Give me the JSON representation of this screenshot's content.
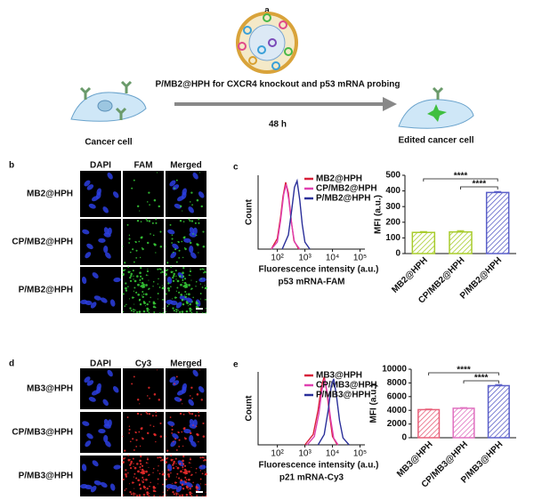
{
  "panel_a": {
    "label": "a",
    "caption": "P/MB2@HPH for CXCR4 knockout and p53 mRNA probing",
    "time": "48 h",
    "left_cell": "Cancer cell",
    "right_cell": "Edited cancer cell"
  },
  "panel_b": {
    "label": "b",
    "columns": [
      "DAPI",
      "FAM",
      "Merged"
    ],
    "rows": [
      "MB2@HPH",
      "CP/MB2@HPH",
      "P/MB2@HPH"
    ]
  },
  "panel_c": {
    "label": "c"
  },
  "panel_d": {
    "label": "d",
    "columns": [
      "DAPI",
      "Cy3",
      "Merged"
    ],
    "rows": [
      "MB3@HPH",
      "CP/MB3@HPH",
      "P/MB3@HPH"
    ]
  },
  "panel_e": {
    "label": "e"
  },
  "chart_data": [
    {
      "type": "line",
      "xlabel": "Fluorescence intensity (a.u.)",
      "caption": "p53 mRNA-FAM",
      "ylabel": "Count",
      "xscale": "log",
      "xlim": [
        20,
        150000
      ],
      "xticks": [
        {
          "value": 100,
          "label": "10²"
        },
        {
          "value": 1000,
          "label": "10³"
        },
        {
          "value": 10000,
          "label": "10⁴"
        },
        {
          "value": 100000,
          "label": "10⁵"
        }
      ],
      "ylim": [
        0,
        105
      ],
      "legend": "upper-right",
      "series": [
        {
          "name": "MB2@HPH",
          "color": "#d8203a",
          "x": [
            60,
            100,
            130,
            160,
            200,
            250,
            320,
            400,
            600
          ],
          "values": [
            0,
            15,
            45,
            75,
            95,
            80,
            40,
            12,
            0
          ]
        },
        {
          "name": "CP/MB2@HPH",
          "color": "#e040b0",
          "x": [
            60,
            100,
            130,
            170,
            210,
            260,
            330,
            420,
            650
          ],
          "values": [
            0,
            10,
            40,
            78,
            92,
            70,
            35,
            10,
            0
          ]
        },
        {
          "name": "P/MB2@HPH",
          "color": "#2a2f9a",
          "x": [
            150,
            250,
            330,
            420,
            520,
            650,
            800,
            1000,
            1500
          ],
          "values": [
            0,
            20,
            55,
            88,
            97,
            70,
            35,
            10,
            0
          ]
        }
      ]
    },
    {
      "type": "bar",
      "ylabel": "MFI (a.u.)",
      "categories": [
        "MB2@HPH",
        "CP/MB2@HPH",
        "P/MB2@HPH"
      ],
      "values": [
        135,
        138,
        390
      ],
      "errors": [
        5,
        8,
        6
      ],
      "colors": [
        "#a8cc2c",
        "#a8cc2c",
        "#5a5fc8"
      ],
      "ylim": [
        0,
        500
      ],
      "yticks": [
        0,
        100,
        200,
        300,
        400,
        500
      ],
      "annotations": [
        "****",
        "****"
      ]
    },
    {
      "type": "line",
      "xlabel": "Fluorescence intensity (a.u.)",
      "caption": "p21 mRNA-Cy3",
      "ylabel": "Count",
      "xscale": "log",
      "xlim": [
        20,
        150000
      ],
      "xticks": [
        {
          "value": 100,
          "label": "10²"
        },
        {
          "value": 1000,
          "label": "10³"
        },
        {
          "value": 10000,
          "label": "10⁴"
        },
        {
          "value": 100000,
          "label": "10⁵"
        }
      ],
      "ylim": [
        0,
        105
      ],
      "legend": "upper-right",
      "series": [
        {
          "name": "MB3@HPH",
          "color": "#d8203a",
          "x": [
            1000,
            2000,
            3000,
            4000,
            5000,
            6300,
            8000,
            10000,
            15000
          ],
          "values": [
            0,
            15,
            50,
            85,
            98,
            75,
            40,
            12,
            0
          ]
        },
        {
          "name": "CP/MB3@HPH",
          "color": "#e040b0",
          "x": [
            1200,
            2200,
            3200,
            4200,
            5300,
            6600,
            8500,
            11000,
            16000
          ],
          "values": [
            0,
            12,
            45,
            80,
            94,
            72,
            38,
            10,
            0
          ]
        },
        {
          "name": "P/MB3@HPH",
          "color": "#2a2f9a",
          "x": [
            3000,
            5000,
            7000,
            9000,
            11000,
            14000,
            18000,
            24000,
            40000
          ],
          "values": [
            0,
            15,
            50,
            85,
            95,
            70,
            35,
            10,
            0
          ]
        }
      ]
    },
    {
      "type": "bar",
      "ylabel": "MFI (a.u.)",
      "categories": [
        "MB3@HPH",
        "CP/MB3@HPH",
        "P/MB3@HPH"
      ],
      "values": [
        4100,
        4300,
        7600
      ],
      "errors": [
        80,
        90,
        150
      ],
      "colors": [
        "#e8607a",
        "#e070c0",
        "#5a5fc8"
      ],
      "ylim": [
        0,
        10000
      ],
      "yticks": [
        0,
        2000,
        4000,
        6000,
        8000,
        10000
      ],
      "annotations": [
        "****",
        "****"
      ]
    }
  ]
}
